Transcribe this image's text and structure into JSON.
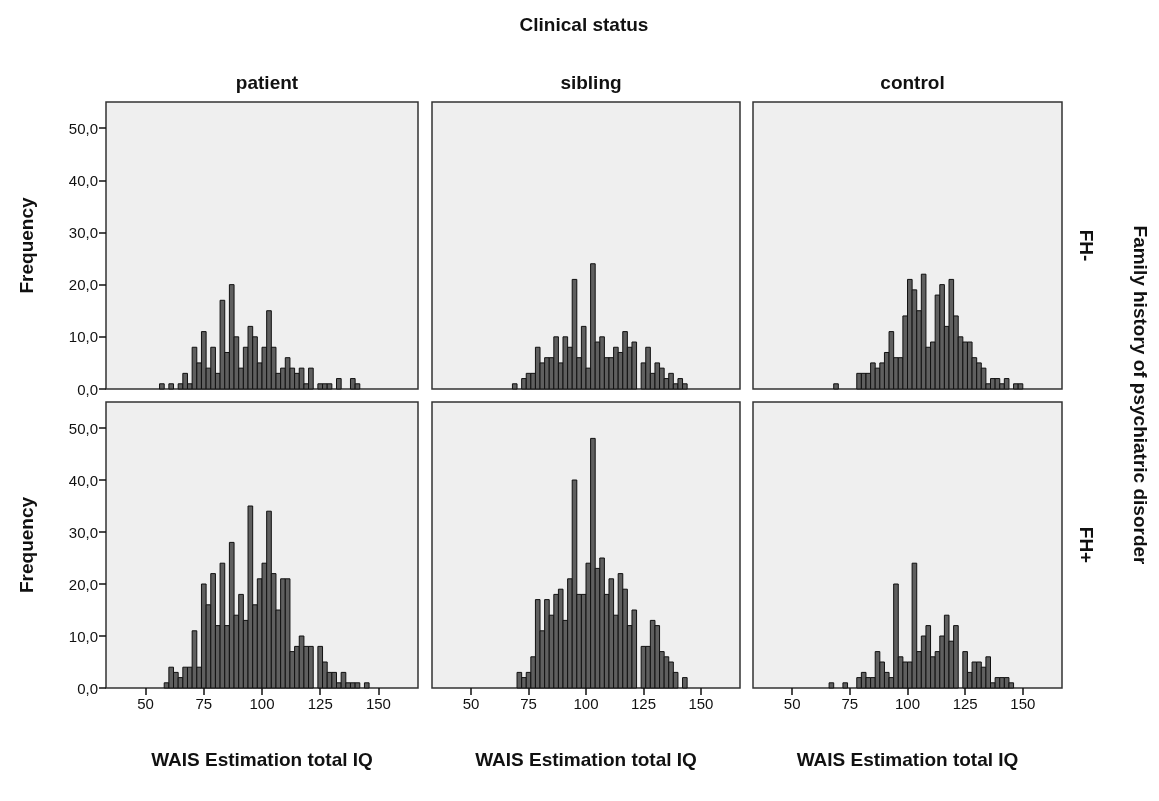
{
  "chart_data": [
    {
      "type": "histogram",
      "title": "patient",
      "ylabel": "Frequency",
      "annotations": [
        "Clinical status"
      ],
      "tick_labels": "y",
      "color": "#5f5f5f",
      "xlim": [
        33,
        167
      ],
      "ylim": [
        0,
        55
      ],
      "yticks": [
        {
          "value": 0,
          "label": "0,0"
        },
        {
          "value": 10,
          "label": "10,0"
        },
        {
          "value": 20,
          "label": "20,0"
        },
        {
          "value": 30,
          "label": "30,0"
        },
        {
          "value": 40,
          "label": "40,0"
        },
        {
          "value": 50,
          "label": "50,0"
        }
      ],
      "bins": [
        56,
        58,
        60,
        62,
        64,
        66,
        68,
        70,
        72,
        74,
        76,
        78,
        80,
        82,
        84,
        86,
        88,
        90,
        92,
        94,
        96,
        98,
        100,
        102,
        104,
        106,
        108,
        110,
        112,
        114,
        116,
        118,
        120,
        122,
        124,
        126,
        128,
        130,
        132,
        134,
        136,
        138,
        140,
        142
      ],
      "values": [
        1,
        0,
        1,
        0,
        1,
        3,
        1,
        8,
        5,
        11,
        4,
        8,
        3,
        17,
        7,
        20,
        10,
        4,
        8,
        12,
        10,
        5,
        8,
        15,
        8,
        3,
        4,
        6,
        4,
        3,
        4,
        1,
        4,
        0,
        1,
        1,
        1,
        0,
        2,
        0,
        0,
        2,
        1
      ]
    },
    {
      "type": "histogram",
      "title": "sibling",
      "tick_labels": false,
      "color": "#5f5f5f",
      "xlim": [
        33,
        167
      ],
      "ylim": [
        0,
        55
      ],
      "bins": [
        68,
        70,
        72,
        74,
        76,
        78,
        80,
        82,
        84,
        86,
        88,
        90,
        92,
        94,
        96,
        98,
        100,
        102,
        104,
        106,
        108,
        110,
        112,
        114,
        116,
        118,
        120,
        122,
        124,
        126,
        128,
        130,
        132,
        134,
        136,
        138,
        140,
        142,
        144
      ],
      "values": [
        1,
        0,
        2,
        3,
        3,
        8,
        5,
        6,
        6,
        10,
        5,
        10,
        8,
        21,
        6,
        12,
        4,
        24,
        9,
        10,
        6,
        6,
        8,
        7,
        11,
        8,
        9,
        0,
        5,
        8,
        3,
        5,
        4,
        2,
        3,
        1,
        2,
        1
      ]
    },
    {
      "type": "histogram",
      "title": "control",
      "annotations": [
        "FH-",
        "Family history of psychiatric disorder"
      ],
      "tick_labels": false,
      "color": "#5f5f5f",
      "xlim": [
        33,
        167
      ],
      "ylim": [
        0,
        55
      ],
      "bins": [
        68,
        70,
        72,
        74,
        76,
        78,
        80,
        82,
        84,
        86,
        88,
        90,
        92,
        94,
        96,
        98,
        100,
        102,
        104,
        106,
        108,
        110,
        112,
        114,
        116,
        118,
        120,
        122,
        124,
        126,
        128,
        130,
        132,
        134,
        136,
        138,
        140,
        142,
        144,
        146,
        148,
        150
      ],
      "values": [
        1,
        0,
        0,
        0,
        0,
        3,
        3,
        3,
        5,
        4,
        5,
        7,
        11,
        6,
        6,
        14,
        21,
        19,
        15,
        22,
        8,
        9,
        18,
        20,
        12,
        21,
        14,
        10,
        9,
        9,
        6,
        5,
        4,
        1,
        2,
        2,
        1,
        2,
        0,
        1,
        1
      ]
    },
    {
      "type": "histogram",
      "xlabel": "WAIS Estimation total IQ",
      "ylabel": "Frequency",
      "color": "#5f5f5f",
      "xlim": [
        33,
        167
      ],
      "xticks": [
        50,
        75,
        100,
        125,
        150
      ],
      "ylim": [
        0,
        55
      ],
      "yticks": [
        {
          "value": 0,
          "label": "0,0"
        },
        {
          "value": 10,
          "label": "10,0"
        },
        {
          "value": 20,
          "label": "20,0"
        },
        {
          "value": 30,
          "label": "30,0"
        },
        {
          "value": 40,
          "label": "40,0"
        },
        {
          "value": 50,
          "label": "50,0"
        }
      ],
      "bins": [
        58,
        60,
        62,
        64,
        66,
        68,
        70,
        72,
        74,
        76,
        78,
        80,
        82,
        84,
        86,
        88,
        90,
        92,
        94,
        96,
        98,
        100,
        102,
        104,
        106,
        108,
        110,
        112,
        114,
        116,
        118,
        120,
        122,
        124,
        126,
        128,
        130,
        132,
        134,
        136,
        138,
        140,
        142,
        144,
        146
      ],
      "values": [
        1,
        4,
        3,
        2,
        4,
        4,
        11,
        4,
        20,
        16,
        22,
        12,
        24,
        12,
        28,
        14,
        18,
        13,
        35,
        16,
        21,
        24,
        34,
        22,
        15,
        21,
        21,
        7,
        8,
        10,
        8,
        8,
        0,
        8,
        5,
        3,
        3,
        1,
        3,
        1,
        1,
        1,
        0,
        1
      ]
    },
    {
      "type": "histogram",
      "xlabel": "WAIS Estimation total IQ",
      "tick_labels": "x",
      "color": "#5f5f5f",
      "xlim": [
        33,
        167
      ],
      "xticks": [
        50,
        75,
        100,
        125,
        150
      ],
      "ylim": [
        0,
        55
      ],
      "bins": [
        70,
        72,
        74,
        76,
        78,
        80,
        82,
        84,
        86,
        88,
        90,
        92,
        94,
        96,
        98,
        100,
        102,
        104,
        106,
        108,
        110,
        112,
        114,
        116,
        118,
        120,
        122,
        124,
        126,
        128,
        130,
        132,
        134,
        136,
        138,
        140,
        142,
        144
      ],
      "values": [
        3,
        2,
        3,
        6,
        17,
        11,
        17,
        14,
        18,
        19,
        13,
        21,
        40,
        18,
        18,
        24,
        48,
        23,
        25,
        18,
        21,
        14,
        22,
        19,
        12,
        15,
        0,
        8,
        8,
        13,
        12,
        7,
        6,
        5,
        3,
        0,
        2
      ]
    },
    {
      "type": "histogram",
      "xlabel": "WAIS Estimation total IQ",
      "annotations": [
        "FH+"
      ],
      "tick_labels": "x",
      "color": "#5f5f5f",
      "xlim": [
        33,
        167
      ],
      "xticks": [
        50,
        75,
        100,
        125,
        150
      ],
      "ylim": [
        0,
        55
      ],
      "bins": [
        66,
        68,
        70,
        72,
        74,
        76,
        78,
        80,
        82,
        84,
        86,
        88,
        90,
        92,
        94,
        96,
        98,
        100,
        102,
        104,
        106,
        108,
        110,
        112,
        114,
        116,
        118,
        120,
        122,
        124,
        126,
        128,
        130,
        132,
        134,
        136,
        138,
        140,
        142,
        144,
        146
      ],
      "values": [
        1,
        0,
        0,
        1,
        0,
        0,
        2,
        3,
        2,
        2,
        7,
        5,
        3,
        2,
        20,
        6,
        5,
        5,
        24,
        7,
        10,
        12,
        6,
        7,
        10,
        14,
        9,
        12,
        0,
        7,
        3,
        5,
        5,
        4,
        6,
        1,
        2,
        2,
        2,
        1
      ]
    }
  ]
}
